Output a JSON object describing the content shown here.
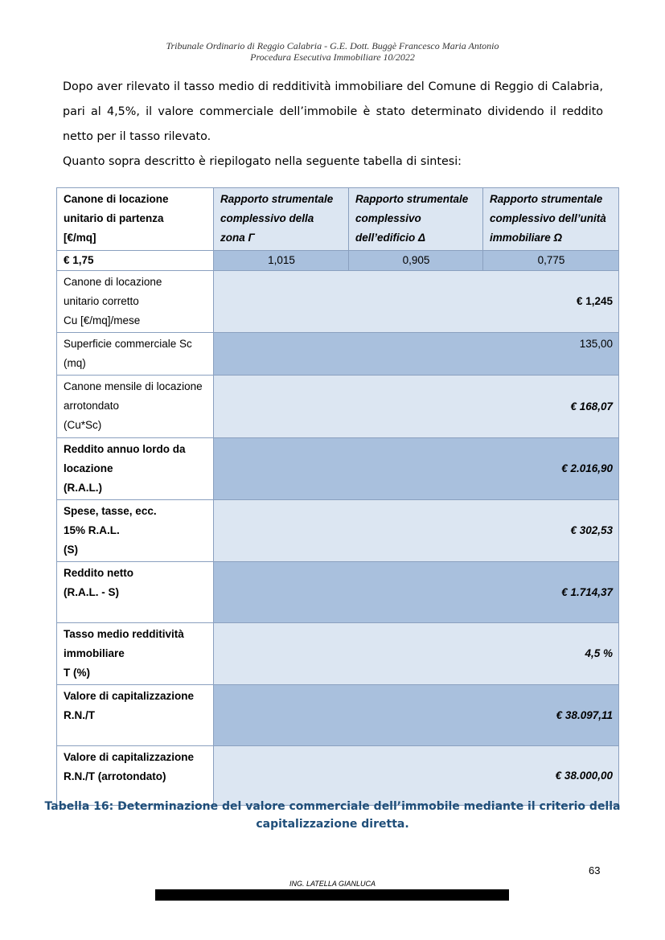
{
  "header": {
    "line1": "Tribunale Ordinario di Reggio Calabria - G.E. Dott. Buggè Francesco Maria Antonio",
    "line2": "Procedura Esecutiva Immobiliare 10/2022"
  },
  "paragraphs": [
    "Dopo aver rilevato il tasso medio di redditività immobiliare del Comune di Reggio di Calabria, pari al 4,5%, il valore commerciale dell’immobile è stato determinato dividendo il reddito netto per il tasso rilevato.",
    "Quanto sopra descritto è riepilogato nella seguente tabella di sintesi:"
  ],
  "table": {
    "header": [
      "Canone di locazione\nunitario di partenza\n[€/mq]",
      "Rapporto strumentale\ncomplessivo della\nzona Γ",
      "Rapporto strumentale\ncomplessivo\ndell’edificio Δ",
      "Rapporto strumentale\ncomplessivo dell’unità\nimmobiliare Ω"
    ],
    "first_row": [
      "€ 1,75",
      "1,015",
      "0,905",
      "0,775"
    ],
    "rows": [
      [
        "Canone di locazione\nunitario corretto\nCu [€/mq]/mese",
        "€ 1,245"
      ],
      [
        "Superficie commerciale Sc\n(mq)",
        "135,00"
      ],
      [
        "Canone mensile di locazione\narrotondato\n(Cu*Sc)",
        "€ 168,07"
      ],
      [
        "Reddito annuo lordo da\nlocazione\n(R.A.L.)",
        "€ 2.016,90"
      ],
      [
        "Spese, tasse, ecc.\n15% R.A.L.\n(S)",
        "€ 302,53"
      ],
      [
        "Reddito netto\n(R.A.L. - S)",
        "€ 1.714,37"
      ],
      [
        "Tasso medio redditività\nimmobiliare\nT (%)",
        "4,5 %"
      ],
      [
        "Valore di capitalizzazione\nR.N./T",
        "€ 38.097,11"
      ],
      [
        "Valore di capitalizzazione\nR.N./T (arrotondato)",
        "€ 38.000,00"
      ]
    ]
  },
  "caption": "Tabella 16: Determinazione del valore commerciale dell’immobile mediante il criterio della capitalizzazione diretta.",
  "page_number": "63",
  "footer": "ING. LATELLA GIANLUCA"
}
